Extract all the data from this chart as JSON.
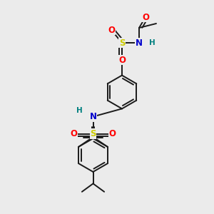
{
  "bg_color": "#ebebeb",
  "bond_color": "#1a1a1a",
  "bond_width": 1.4,
  "colors": {
    "C": "#1a1a1a",
    "N": "#0000cc",
    "O": "#ff0000",
    "S": "#cccc00",
    "H": "#008080"
  },
  "font_size": 8.5,
  "fig_size": [
    3.0,
    3.0
  ],
  "dpi": 100
}
